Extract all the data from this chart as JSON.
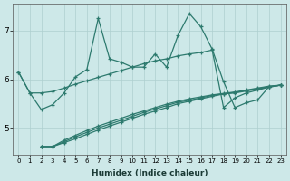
{
  "xlabel": "Humidex (Indice chaleur)",
  "bg_color": "#cde8e8",
  "line_color": "#2d7a6e",
  "grid_color": "#aecfcf",
  "xlim": [
    -0.5,
    23.5
  ],
  "ylim": [
    4.45,
    7.55
  ],
  "xticks": [
    0,
    1,
    2,
    3,
    4,
    5,
    6,
    7,
    8,
    9,
    10,
    11,
    12,
    13,
    14,
    15,
    16,
    17,
    18,
    19,
    20,
    21,
    22,
    23
  ],
  "yticks": [
    5,
    6,
    7
  ],
  "curve_x": [
    0,
    1,
    2,
    3,
    4,
    5,
    6,
    7,
    8,
    9,
    10,
    11,
    12,
    13,
    14,
    15,
    16,
    17,
    18,
    19,
    20,
    21,
    22,
    23
  ],
  "curve_y": [
    6.15,
    5.72,
    5.38,
    5.48,
    5.72,
    6.05,
    6.2,
    7.25,
    6.42,
    6.35,
    6.25,
    6.25,
    6.52,
    6.25,
    6.9,
    7.35,
    7.08,
    6.62,
    5.95,
    5.42,
    5.52,
    5.58,
    5.85,
    5.88
  ],
  "line1_x": [
    0,
    1,
    2,
    3,
    4,
    5,
    6,
    7,
    8,
    9,
    10,
    11,
    12,
    13,
    14,
    15,
    16,
    17,
    18,
    19,
    20,
    21,
    22,
    23
  ],
  "line1_y": [
    6.15,
    5.72,
    5.72,
    5.75,
    5.82,
    5.9,
    5.97,
    6.04,
    6.11,
    6.18,
    6.25,
    6.32,
    6.38,
    6.42,
    6.48,
    6.52,
    6.55,
    6.6,
    5.42,
    5.62,
    5.72,
    5.78,
    5.84,
    5.88
  ],
  "line2_x": [
    2,
    3,
    4,
    5,
    6,
    7,
    8,
    9,
    10,
    11,
    12,
    13,
    14,
    15,
    16,
    17,
    18,
    19,
    20,
    21,
    22,
    23
  ],
  "line2_y": [
    4.62,
    4.62,
    4.7,
    4.78,
    4.87,
    4.96,
    5.04,
    5.12,
    5.2,
    5.28,
    5.35,
    5.42,
    5.5,
    5.55,
    5.6,
    5.65,
    5.7,
    5.72,
    5.76,
    5.8,
    5.84,
    5.88
  ],
  "line3_x": [
    2,
    3,
    4,
    5,
    6,
    7,
    8,
    9,
    10,
    11,
    12,
    13,
    14,
    15,
    16,
    17,
    18,
    19,
    20,
    21,
    22,
    23
  ],
  "line3_y": [
    4.62,
    4.62,
    4.72,
    4.82,
    4.91,
    5.0,
    5.08,
    5.16,
    5.24,
    5.32,
    5.39,
    5.46,
    5.53,
    5.57,
    5.62,
    5.67,
    5.7,
    5.73,
    5.77,
    5.81,
    5.85,
    5.88
  ],
  "line4_x": [
    2,
    3,
    4,
    5,
    6,
    7,
    8,
    9,
    10,
    11,
    12,
    13,
    14,
    15,
    16,
    17,
    18,
    19,
    20,
    21,
    22,
    23
  ],
  "line4_y": [
    4.62,
    4.62,
    4.75,
    4.85,
    4.95,
    5.04,
    5.12,
    5.2,
    5.28,
    5.35,
    5.42,
    5.49,
    5.55,
    5.6,
    5.64,
    5.68,
    5.71,
    5.74,
    5.78,
    5.82,
    5.86,
    5.88
  ]
}
